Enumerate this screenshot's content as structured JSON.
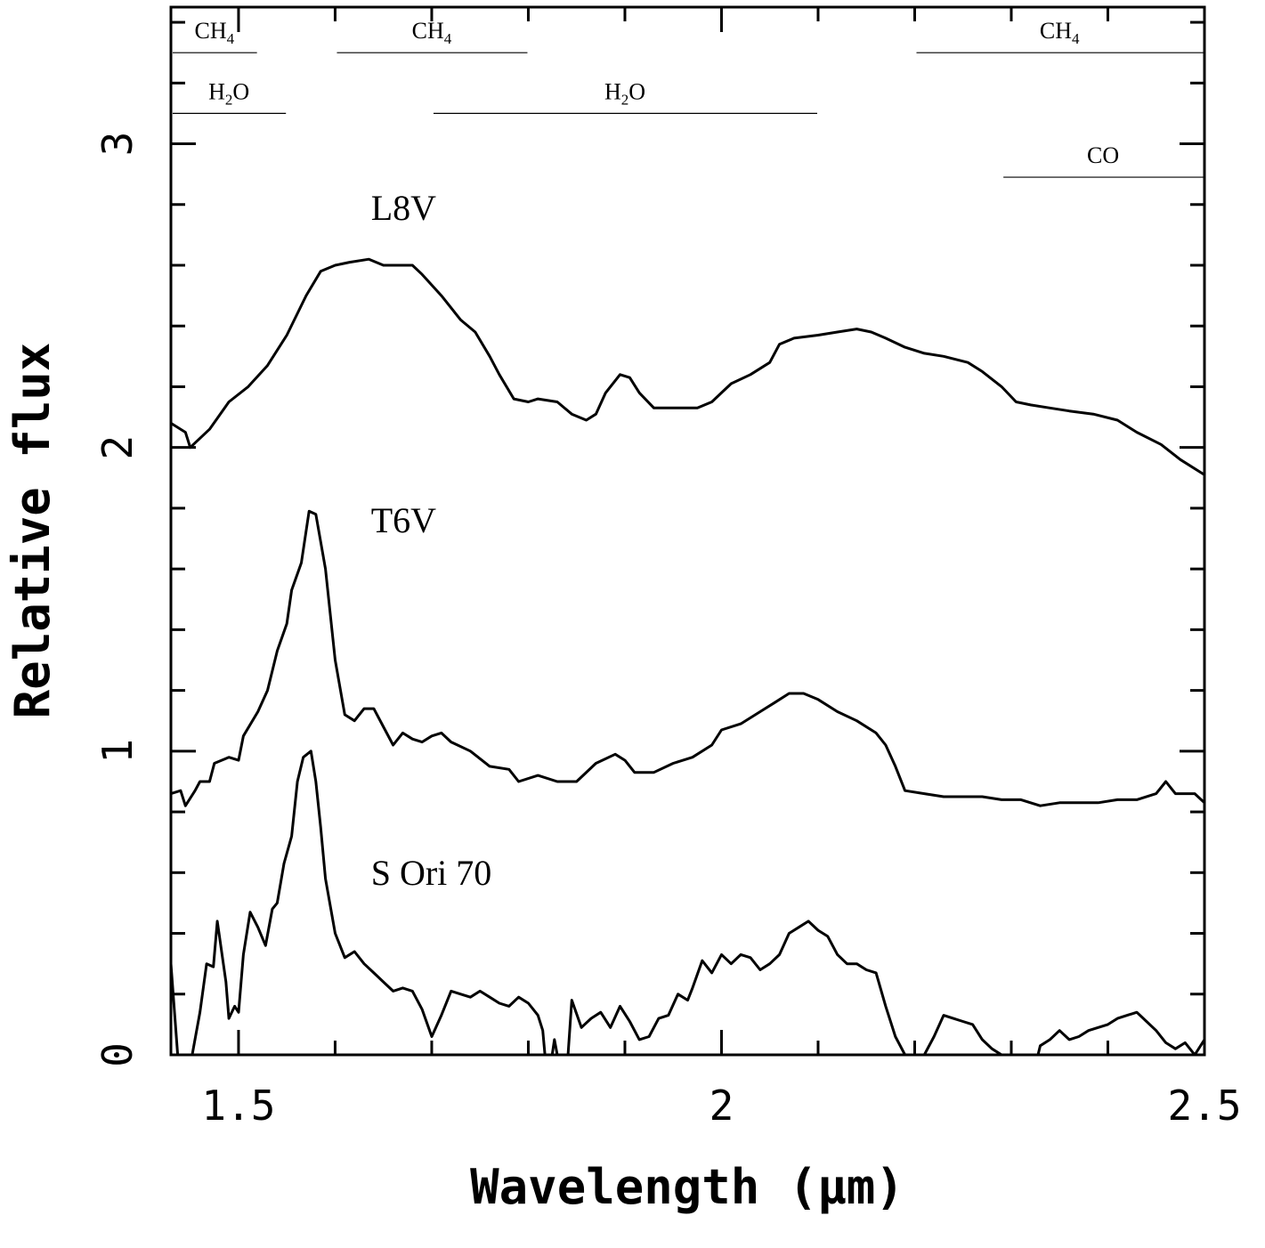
{
  "chart_data": {
    "type": "line",
    "xlabel": "Wavelength (μm)",
    "ylabel": "Relative flux",
    "xlim": [
      1.43,
      2.5
    ],
    "ylim": [
      0,
      3.45
    ],
    "x_ticks": [
      {
        "value": 1.5,
        "label": "1.5"
      },
      {
        "value": 2.0,
        "label": "2"
      },
      {
        "value": 2.5,
        "label": "2.5"
      }
    ],
    "y_ticks": [
      {
        "value": 0,
        "label": "0"
      },
      {
        "value": 1,
        "label": "1"
      },
      {
        "value": 2,
        "label": "2"
      },
      {
        "value": 3,
        "label": "3"
      }
    ],
    "grid": false,
    "legend": "none",
    "absorption_bands": [
      {
        "molecule": "CH",
        "sub": "4",
        "x0": 1.43,
        "x1": 1.52,
        "y": 3.3
      },
      {
        "molecule": "CH",
        "sub": "4",
        "x0": 1.6,
        "x1": 1.8,
        "y": 3.3
      },
      {
        "molecule": "CH",
        "sub": "4",
        "x0": 2.2,
        "x1": 2.5,
        "y": 3.3
      },
      {
        "molecule": "H",
        "sub": "2",
        "molecule2": "O",
        "x0": 1.43,
        "x1": 1.55,
        "y": 3.1
      },
      {
        "molecule": "H",
        "sub": "2",
        "molecule2": "O",
        "x0": 1.7,
        "x1": 2.1,
        "y": 3.1
      },
      {
        "molecule": "CO",
        "sub": "",
        "x0": 2.29,
        "x1": 2.5,
        "y": 2.89
      }
    ],
    "series": [
      {
        "name": "L8V",
        "label_pos": [
          1.65,
          2.75
        ],
        "points": [
          [
            1.43,
            2.08
          ],
          [
            1.445,
            2.05
          ],
          [
            1.45,
            2.0
          ],
          [
            1.47,
            2.06
          ],
          [
            1.49,
            2.15
          ],
          [
            1.51,
            2.2
          ],
          [
            1.53,
            2.27
          ],
          [
            1.55,
            2.37
          ],
          [
            1.57,
            2.5
          ],
          [
            1.585,
            2.58
          ],
          [
            1.6,
            2.6
          ],
          [
            1.615,
            2.61
          ],
          [
            1.635,
            2.62
          ],
          [
            1.65,
            2.6
          ],
          [
            1.67,
            2.6
          ],
          [
            1.68,
            2.6
          ],
          [
            1.69,
            2.57
          ],
          [
            1.71,
            2.5
          ],
          [
            1.73,
            2.42
          ],
          [
            1.745,
            2.38
          ],
          [
            1.76,
            2.3
          ],
          [
            1.77,
            2.24
          ],
          [
            1.785,
            2.16
          ],
          [
            1.8,
            2.15
          ],
          [
            1.81,
            2.16
          ],
          [
            1.83,
            2.15
          ],
          [
            1.845,
            2.11
          ],
          [
            1.86,
            2.09
          ],
          [
            1.87,
            2.11
          ],
          [
            1.88,
            2.18
          ],
          [
            1.895,
            2.24
          ],
          [
            1.905,
            2.23
          ],
          [
            1.915,
            2.18
          ],
          [
            1.93,
            2.13
          ],
          [
            1.95,
            2.13
          ],
          [
            1.975,
            2.13
          ],
          [
            1.99,
            2.15
          ],
          [
            2.01,
            2.21
          ],
          [
            2.03,
            2.24
          ],
          [
            2.05,
            2.28
          ],
          [
            2.06,
            2.34
          ],
          [
            2.075,
            2.36
          ],
          [
            2.1,
            2.37
          ],
          [
            2.12,
            2.38
          ],
          [
            2.14,
            2.39
          ],
          [
            2.155,
            2.38
          ],
          [
            2.17,
            2.36
          ],
          [
            2.19,
            2.33
          ],
          [
            2.21,
            2.31
          ],
          [
            2.23,
            2.3
          ],
          [
            2.255,
            2.28
          ],
          [
            2.27,
            2.25
          ],
          [
            2.29,
            2.2
          ],
          [
            2.305,
            2.15
          ],
          [
            2.32,
            2.14
          ],
          [
            2.34,
            2.13
          ],
          [
            2.36,
            2.12
          ],
          [
            2.385,
            2.11
          ],
          [
            2.41,
            2.09
          ],
          [
            2.43,
            2.05
          ],
          [
            2.455,
            2.01
          ],
          [
            2.475,
            1.96
          ],
          [
            2.5,
            1.91
          ]
        ]
      },
      {
        "name": "T6V",
        "label_pos": [
          1.65,
          1.72
        ],
        "points": [
          [
            1.43,
            0.86
          ],
          [
            1.44,
            0.87
          ],
          [
            1.445,
            0.82
          ],
          [
            1.455,
            0.87
          ],
          [
            1.46,
            0.9
          ],
          [
            1.47,
            0.9
          ],
          [
            1.475,
            0.96
          ],
          [
            1.49,
            0.98
          ],
          [
            1.5,
            0.97
          ],
          [
            1.505,
            1.05
          ],
          [
            1.52,
            1.13
          ],
          [
            1.53,
            1.2
          ],
          [
            1.54,
            1.33
          ],
          [
            1.55,
            1.42
          ],
          [
            1.555,
            1.53
          ],
          [
            1.565,
            1.62
          ],
          [
            1.573,
            1.79
          ],
          [
            1.58,
            1.78
          ],
          [
            1.59,
            1.6
          ],
          [
            1.6,
            1.3
          ],
          [
            1.61,
            1.12
          ],
          [
            1.62,
            1.1
          ],
          [
            1.63,
            1.14
          ],
          [
            1.64,
            1.14
          ],
          [
            1.65,
            1.08
          ],
          [
            1.66,
            1.02
          ],
          [
            1.67,
            1.06
          ],
          [
            1.68,
            1.04
          ],
          [
            1.69,
            1.03
          ],
          [
            1.7,
            1.05
          ],
          [
            1.71,
            1.06
          ],
          [
            1.72,
            1.03
          ],
          [
            1.74,
            1.0
          ],
          [
            1.76,
            0.95
          ],
          [
            1.78,
            0.94
          ],
          [
            1.79,
            0.9
          ],
          [
            1.81,
            0.92
          ],
          [
            1.83,
            0.9
          ],
          [
            1.85,
            0.9
          ],
          [
            1.87,
            0.96
          ],
          [
            1.89,
            0.99
          ],
          [
            1.9,
            0.97
          ],
          [
            1.91,
            0.93
          ],
          [
            1.93,
            0.93
          ],
          [
            1.95,
            0.96
          ],
          [
            1.97,
            0.98
          ],
          [
            1.99,
            1.02
          ],
          [
            2.0,
            1.07
          ],
          [
            2.02,
            1.09
          ],
          [
            2.04,
            1.13
          ],
          [
            2.055,
            1.16
          ],
          [
            2.07,
            1.19
          ],
          [
            2.085,
            1.19
          ],
          [
            2.1,
            1.17
          ],
          [
            2.12,
            1.13
          ],
          [
            2.14,
            1.1
          ],
          [
            2.16,
            1.06
          ],
          [
            2.17,
            1.02
          ],
          [
            2.18,
            0.95
          ],
          [
            2.19,
            0.87
          ],
          [
            2.21,
            0.86
          ],
          [
            2.23,
            0.85
          ],
          [
            2.25,
            0.85
          ],
          [
            2.27,
            0.85
          ],
          [
            2.29,
            0.84
          ],
          [
            2.31,
            0.84
          ],
          [
            2.33,
            0.82
          ],
          [
            2.35,
            0.83
          ],
          [
            2.37,
            0.83
          ],
          [
            2.39,
            0.83
          ],
          [
            2.41,
            0.84
          ],
          [
            2.43,
            0.84
          ],
          [
            2.45,
            0.86
          ],
          [
            2.46,
            0.9
          ],
          [
            2.47,
            0.86
          ],
          [
            2.48,
            0.86
          ],
          [
            2.49,
            0.86
          ],
          [
            2.5,
            0.83
          ]
        ]
      },
      {
        "name": "S Ori 70",
        "label_pos": [
          1.65,
          0.56
        ],
        "points": [
          [
            1.43,
            0.3
          ],
          [
            1.437,
            0.0
          ],
          [
            1.445,
            -0.1
          ],
          [
            1.452,
            0.0
          ],
          [
            1.46,
            0.14
          ],
          [
            1.467,
            0.3
          ],
          [
            1.474,
            0.29
          ],
          [
            1.478,
            0.44
          ],
          [
            1.487,
            0.24
          ],
          [
            1.49,
            0.12
          ],
          [
            1.496,
            0.16
          ],
          [
            1.5,
            0.14
          ],
          [
            1.505,
            0.33
          ],
          [
            1.512,
            0.47
          ],
          [
            1.52,
            0.42
          ],
          [
            1.528,
            0.36
          ],
          [
            1.535,
            0.48
          ],
          [
            1.54,
            0.5
          ],
          [
            1.547,
            0.63
          ],
          [
            1.555,
            0.72
          ],
          [
            1.561,
            0.9
          ],
          [
            1.567,
            0.98
          ],
          [
            1.575,
            1.0
          ],
          [
            1.58,
            0.9
          ],
          [
            1.585,
            0.75
          ],
          [
            1.59,
            0.58
          ],
          [
            1.6,
            0.4
          ],
          [
            1.61,
            0.32
          ],
          [
            1.62,
            0.34
          ],
          [
            1.63,
            0.3
          ],
          [
            1.64,
            0.27
          ],
          [
            1.65,
            0.24
          ],
          [
            1.66,
            0.21
          ],
          [
            1.67,
            0.22
          ],
          [
            1.68,
            0.21
          ],
          [
            1.69,
            0.15
          ],
          [
            1.7,
            0.06
          ],
          [
            1.71,
            0.13
          ],
          [
            1.72,
            0.21
          ],
          [
            1.73,
            0.2
          ],
          [
            1.74,
            0.19
          ],
          [
            1.75,
            0.21
          ],
          [
            1.76,
            0.19
          ],
          [
            1.77,
            0.17
          ],
          [
            1.78,
            0.16
          ],
          [
            1.79,
            0.19
          ],
          [
            1.8,
            0.17
          ],
          [
            1.81,
            0.13
          ],
          [
            1.815,
            0.08
          ],
          [
            1.82,
            -0.1
          ],
          [
            1.827,
            0.05
          ],
          [
            1.83,
            0.0
          ],
          [
            1.84,
            -0.05
          ],
          [
            1.845,
            0.18
          ],
          [
            1.855,
            0.09
          ],
          [
            1.865,
            0.12
          ],
          [
            1.875,
            0.14
          ],
          [
            1.885,
            0.09
          ],
          [
            1.895,
            0.16
          ],
          [
            1.905,
            0.11
          ],
          [
            1.915,
            0.05
          ],
          [
            1.925,
            0.06
          ],
          [
            1.935,
            0.12
          ],
          [
            1.945,
            0.13
          ],
          [
            1.955,
            0.2
          ],
          [
            1.965,
            0.18
          ],
          [
            1.97,
            0.22
          ],
          [
            1.98,
            0.31
          ],
          [
            1.99,
            0.27
          ],
          [
            2.0,
            0.33
          ],
          [
            2.01,
            0.3
          ],
          [
            2.02,
            0.33
          ],
          [
            2.03,
            0.32
          ],
          [
            2.04,
            0.28
          ],
          [
            2.05,
            0.3
          ],
          [
            2.06,
            0.33
          ],
          [
            2.07,
            0.4
          ],
          [
            2.08,
            0.42
          ],
          [
            2.09,
            0.44
          ],
          [
            2.1,
            0.41
          ],
          [
            2.11,
            0.39
          ],
          [
            2.12,
            0.33
          ],
          [
            2.13,
            0.3
          ],
          [
            2.14,
            0.3
          ],
          [
            2.15,
            0.28
          ],
          [
            2.16,
            0.27
          ],
          [
            2.17,
            0.16
          ],
          [
            2.18,
            0.06
          ],
          [
            2.19,
            0.0
          ],
          [
            2.2,
            -0.1
          ],
          [
            2.21,
            0.0
          ],
          [
            2.22,
            0.06
          ],
          [
            2.23,
            0.13
          ],
          [
            2.24,
            0.12
          ],
          [
            2.25,
            0.11
          ],
          [
            2.26,
            0.1
          ],
          [
            2.27,
            0.05
          ],
          [
            2.28,
            0.02
          ],
          [
            2.29,
            0.0
          ],
          [
            2.3,
            -0.1
          ],
          [
            2.32,
            -0.1
          ],
          [
            2.33,
            0.03
          ],
          [
            2.34,
            0.05
          ],
          [
            2.35,
            0.08
          ],
          [
            2.36,
            0.05
          ],
          [
            2.37,
            0.06
          ],
          [
            2.38,
            0.08
          ],
          [
            2.39,
            0.09
          ],
          [
            2.4,
            0.1
          ],
          [
            2.41,
            0.12
          ],
          [
            2.42,
            0.13
          ],
          [
            2.43,
            0.14
          ],
          [
            2.44,
            0.11
          ],
          [
            2.45,
            0.08
          ],
          [
            2.46,
            0.04
          ],
          [
            2.47,
            0.02
          ],
          [
            2.48,
            0.04
          ],
          [
            2.49,
            0.0
          ],
          [
            2.5,
            0.05
          ]
        ]
      }
    ]
  }
}
